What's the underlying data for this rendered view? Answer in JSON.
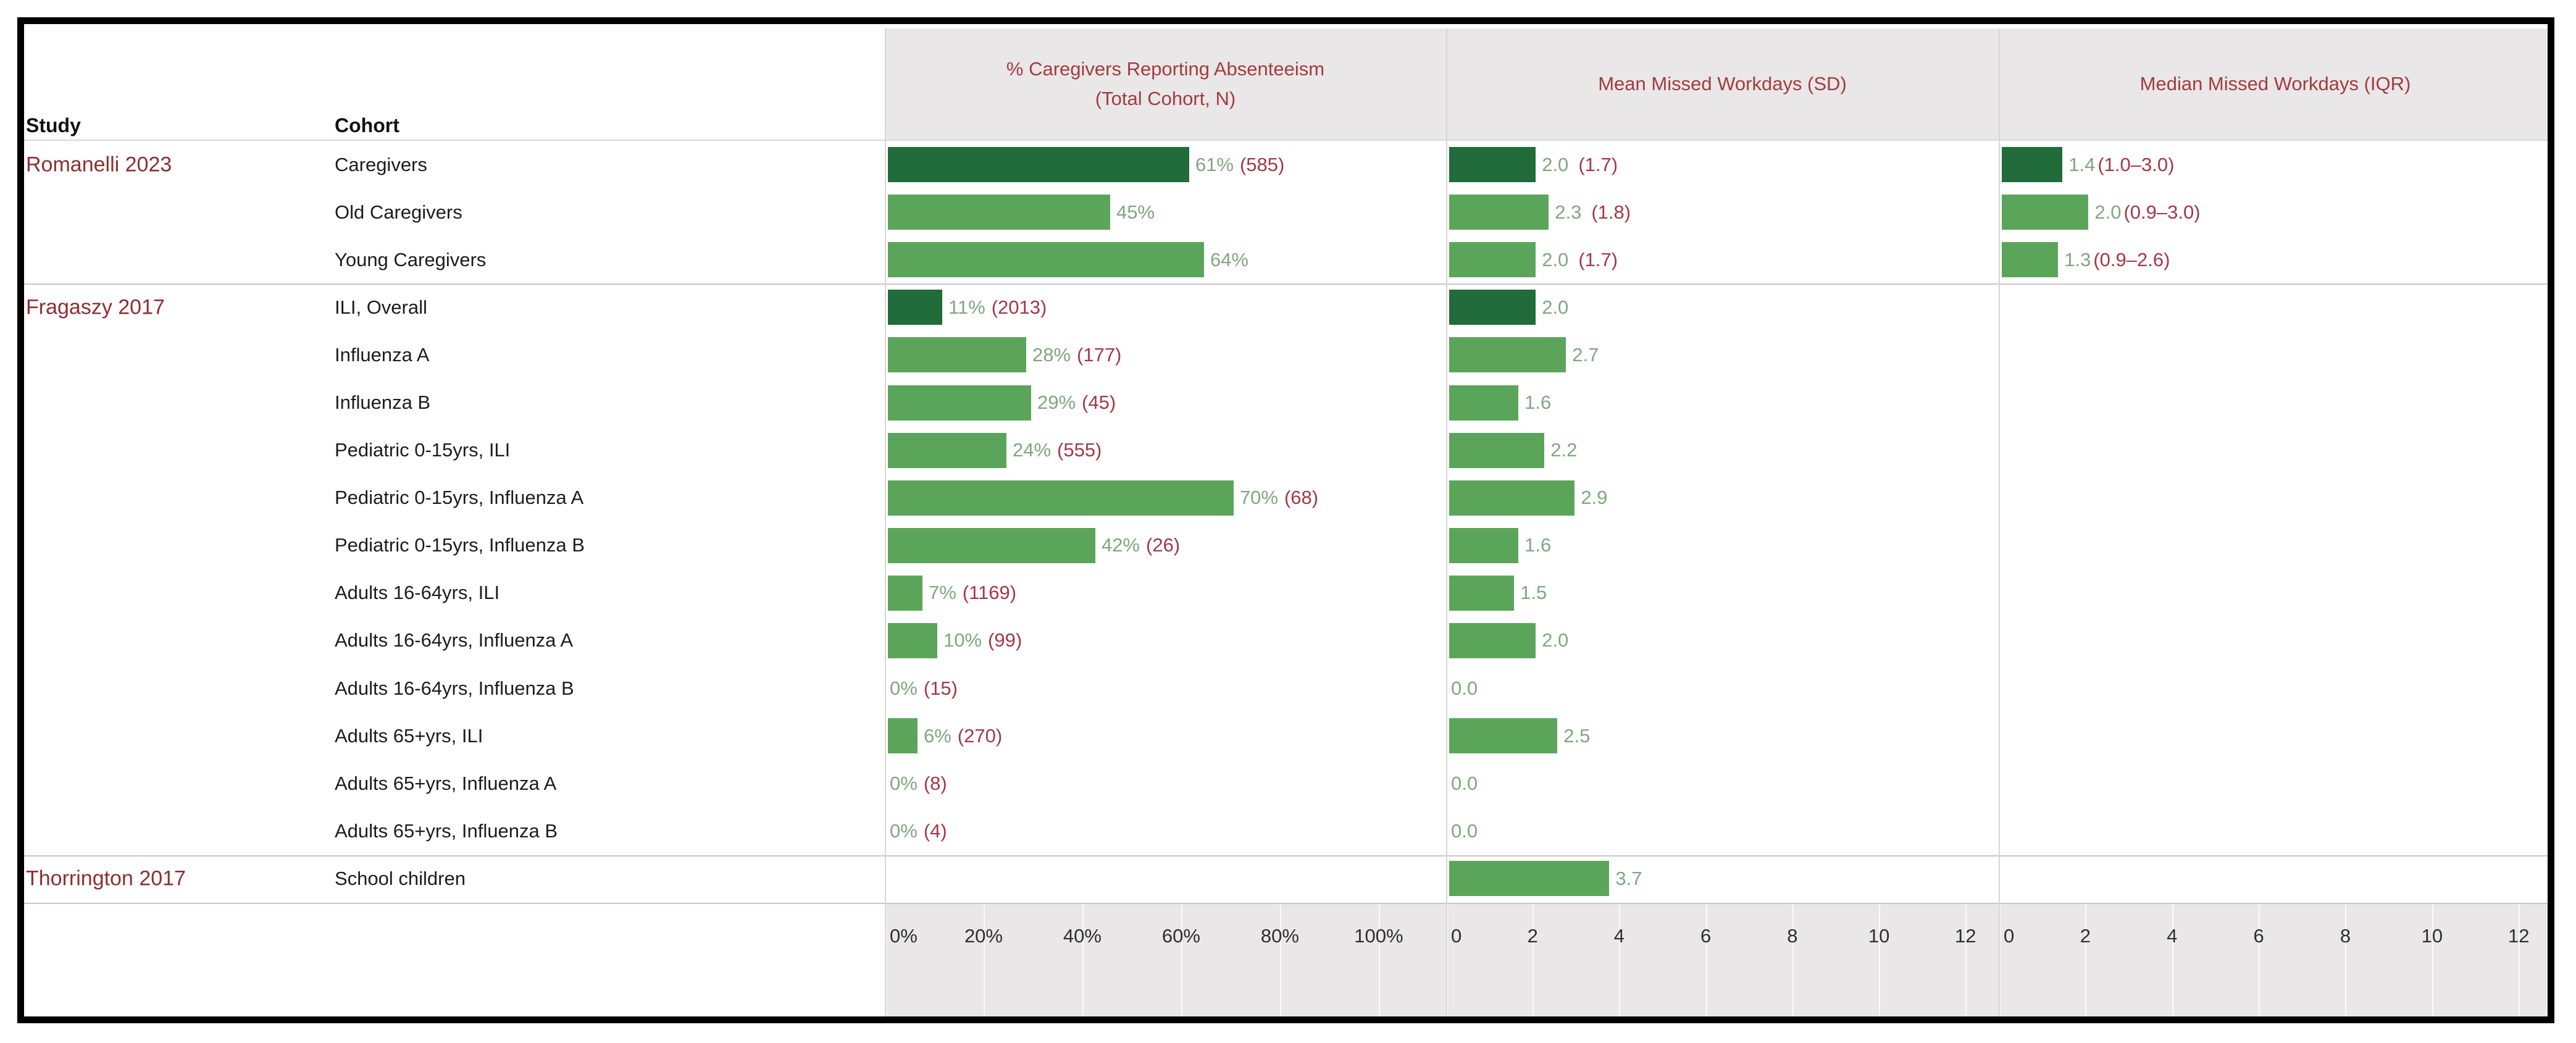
{
  "colors": {
    "bar_dark": "#226b3a",
    "bar_green": "#5ba55b",
    "value_text": "#7fa77f",
    "paren_text": "#a43746",
    "study_text": "#8c2f33",
    "header_text": "#a43b40",
    "axis_text": "#2e2e2e",
    "panel_bg": "#e9e7e7",
    "divider_line": "#d9d5d5",
    "separator_line": "#c7c7c7",
    "frame": "#000000",
    "text": "#1c1c1c"
  },
  "chart_data": {
    "type": "bar",
    "orientation": "horizontal",
    "grid": "off",
    "legend": "none",
    "column_headers": {
      "study": "Study",
      "cohort": "Cohort"
    },
    "panels": [
      {
        "key": "pct",
        "title": "% Caregivers Reporting Absenteeism\n(Total Cohort, N)",
        "axis": {
          "min": 0,
          "max": 100,
          "ticks": [
            0,
            20,
            40,
            60,
            80,
            100
          ],
          "tick_labels": [
            "0%",
            "20%",
            "40%",
            "60%",
            "80%",
            "100%"
          ]
        }
      },
      {
        "key": "mean",
        "title": "Mean Missed Workdays (SD)",
        "axis": {
          "min": 0,
          "max": 12,
          "ticks": [
            0,
            2,
            4,
            6,
            8,
            10,
            12
          ],
          "tick_labels": [
            "0",
            "2",
            "4",
            "6",
            "8",
            "10",
            "12"
          ]
        }
      },
      {
        "key": "median",
        "title": "Median Missed Workdays (IQR)",
        "axis": {
          "min": 0,
          "max": 12,
          "ticks": [
            0,
            2,
            4,
            6,
            8,
            10,
            12
          ],
          "tick_labels": [
            "0",
            "2",
            "4",
            "6",
            "8",
            "10",
            "12"
          ]
        }
      }
    ],
    "rows": [
      {
        "study": "Romanelli 2023",
        "cohort": "Caregivers",
        "emphasis": true,
        "pct": {
          "value": 61,
          "label": "61%",
          "paren": "(585)"
        },
        "mean": {
          "value": 2.0,
          "label": "2.0",
          "paren": "(1.7)"
        },
        "median": {
          "value": 1.4,
          "label": "1.4",
          "paren": "(1.0–3.0)"
        }
      },
      {
        "study": "",
        "cohort": "Old Caregivers",
        "emphasis": false,
        "pct": {
          "value": 45,
          "label": "45%",
          "paren": ""
        },
        "mean": {
          "value": 2.3,
          "label": "2.3",
          "paren": "(1.8)"
        },
        "median": {
          "value": 2.0,
          "label": "2.0",
          "paren": "(0.9–3.0)"
        }
      },
      {
        "study": "",
        "cohort": "Young Caregivers",
        "emphasis": false,
        "pct": {
          "value": 64,
          "label": "64%",
          "paren": ""
        },
        "mean": {
          "value": 2.0,
          "label": "2.0",
          "paren": "(1.7)"
        },
        "median": {
          "value": 1.3,
          "label": "1.3",
          "paren": "(0.9–2.6)"
        }
      },
      {
        "study": "Fragaszy 2017",
        "cohort": "ILI, Overall",
        "emphasis": true,
        "pct": {
          "value": 11,
          "label": "11%",
          "paren": "(2013)"
        },
        "mean": {
          "value": 2.0,
          "label": "2.0",
          "paren": ""
        },
        "median": null
      },
      {
        "study": "",
        "cohort": "Influenza A",
        "emphasis": false,
        "pct": {
          "value": 28,
          "label": "28%",
          "paren": "(177)"
        },
        "mean": {
          "value": 2.7,
          "label": "2.7",
          "paren": ""
        },
        "median": null
      },
      {
        "study": "",
        "cohort": "Influenza B",
        "emphasis": false,
        "pct": {
          "value": 29,
          "label": "29%",
          "paren": "(45)"
        },
        "mean": {
          "value": 1.6,
          "label": "1.6",
          "paren": ""
        },
        "median": null
      },
      {
        "study": "",
        "cohort": "Pediatric 0-15yrs, ILI",
        "emphasis": false,
        "pct": {
          "value": 24,
          "label": "24%",
          "paren": "(555)"
        },
        "mean": {
          "value": 2.2,
          "label": "2.2",
          "paren": ""
        },
        "median": null
      },
      {
        "study": "",
        "cohort": "Pediatric 0-15yrs, Influenza A",
        "emphasis": false,
        "pct": {
          "value": 70,
          "label": "70%",
          "paren": "(68)"
        },
        "mean": {
          "value": 2.9,
          "label": "2.9",
          "paren": ""
        },
        "median": null
      },
      {
        "study": "",
        "cohort": "Pediatric 0-15yrs, Influenza B",
        "emphasis": false,
        "pct": {
          "value": 42,
          "label": "42%",
          "paren": "(26)"
        },
        "mean": {
          "value": 1.6,
          "label": "1.6",
          "paren": ""
        },
        "median": null
      },
      {
        "study": "",
        "cohort": "Adults 16-64yrs, ILI",
        "emphasis": false,
        "pct": {
          "value": 7,
          "label": "7%",
          "paren": "(1169)"
        },
        "mean": {
          "value": 1.5,
          "label": "1.5",
          "paren": ""
        },
        "median": null
      },
      {
        "study": "",
        "cohort": "Adults 16-64yrs, Influenza A",
        "emphasis": false,
        "pct": {
          "value": 10,
          "label": "10%",
          "paren": "(99)"
        },
        "mean": {
          "value": 2.0,
          "label": "2.0",
          "paren": ""
        },
        "median": null
      },
      {
        "study": "",
        "cohort": "Adults 16-64yrs, Influenza B",
        "emphasis": false,
        "pct": {
          "value": 0,
          "label": "0%",
          "paren": "(15)"
        },
        "mean": {
          "value": 0.0,
          "label": "0.0",
          "paren": ""
        },
        "median": null
      },
      {
        "study": "",
        "cohort": "Adults 65+yrs, ILI",
        "emphasis": false,
        "pct": {
          "value": 6,
          "label": "6%",
          "paren": "(270)"
        },
        "mean": {
          "value": 2.5,
          "label": "2.5",
          "paren": ""
        },
        "median": null
      },
      {
        "study": "",
        "cohort": "Adults 65+yrs, Influenza A",
        "emphasis": false,
        "pct": {
          "value": 0,
          "label": "0%",
          "paren": "(8)"
        },
        "mean": {
          "value": 0.0,
          "label": "0.0",
          "paren": ""
        },
        "median": null
      },
      {
        "study": "",
        "cohort": "Adults 65+yrs, Influenza B",
        "emphasis": false,
        "pct": {
          "value": 0,
          "label": "0%",
          "paren": "(4)"
        },
        "mean": {
          "value": 0.0,
          "label": "0.0",
          "paren": ""
        },
        "median": null
      },
      {
        "study": "Thorrington 2017",
        "cohort": "School children",
        "emphasis": false,
        "pct": null,
        "mean": {
          "value": 3.7,
          "label": "3.7",
          "paren": ""
        },
        "median": null
      }
    ]
  }
}
